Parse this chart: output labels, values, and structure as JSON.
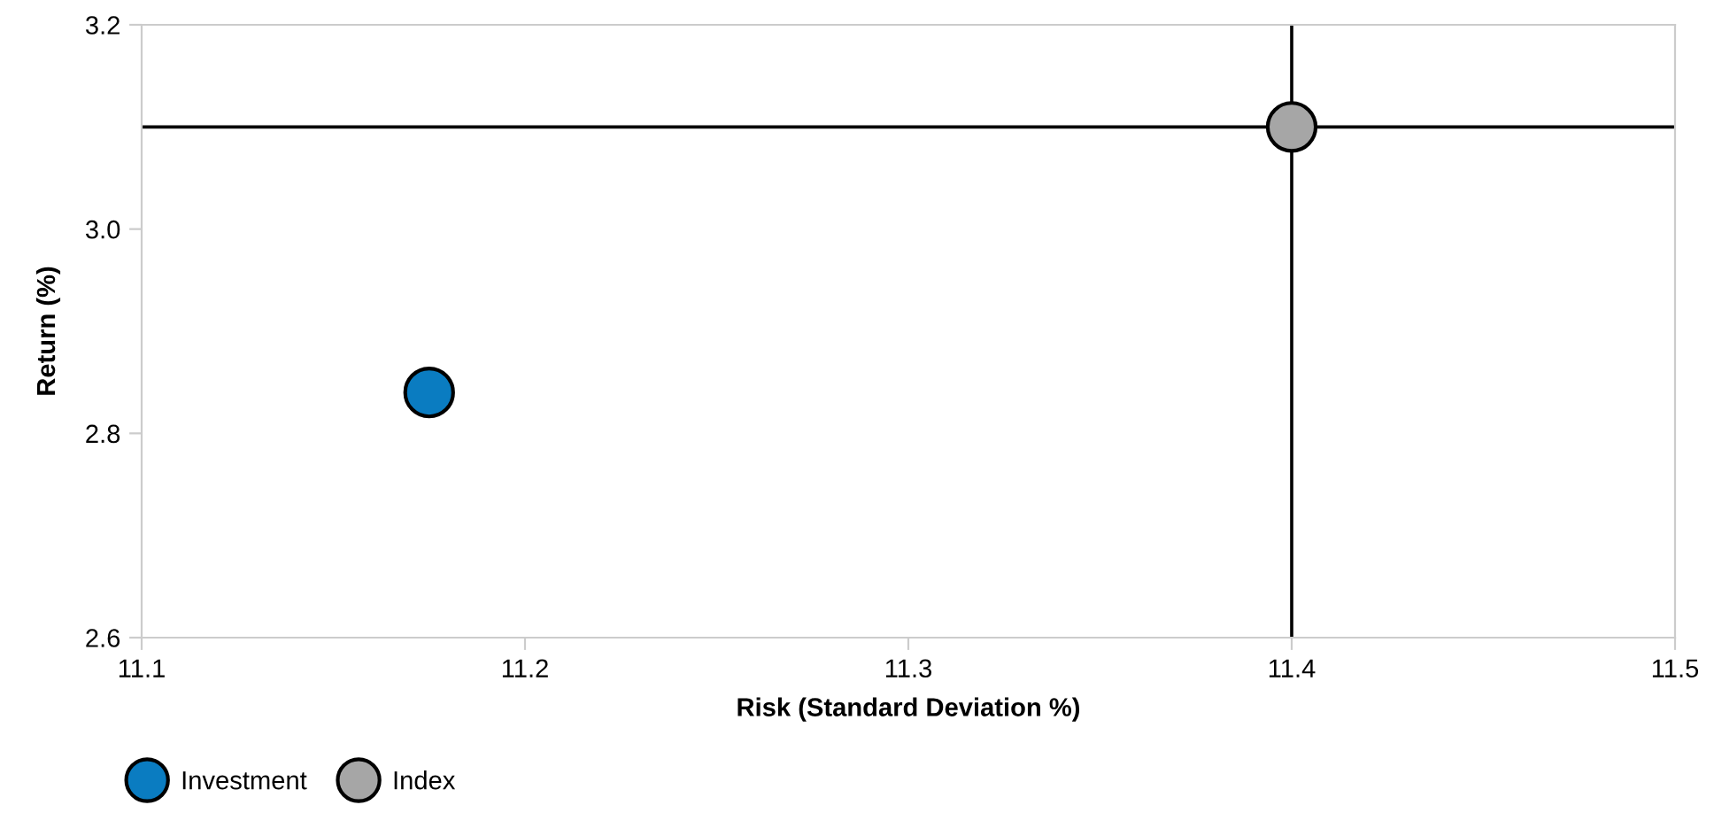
{
  "chart_data": {
    "type": "scatter",
    "xlabel": "Risk (Standard Deviation %)",
    "ylabel": "Return (%)",
    "series": [
      {
        "name": "Investment",
        "color": "#0a7cc1",
        "x": [
          11.175
        ],
        "values": [
          2.84
        ]
      },
      {
        "name": "Index",
        "color": "#a6a6a6",
        "x": [
          11.4
        ],
        "values": [
          3.1
        ]
      }
    ],
    "xlim": [
      11.1,
      11.5
    ],
    "xticks": [
      11.1,
      11.2,
      11.3,
      11.4,
      11.5
    ],
    "ylim": [
      2.6,
      3.2
    ],
    "yticks": [
      2.6,
      2.8,
      {
        "value": 3,
        "label": "3.0"
      },
      3.2
    ],
    "ref_lines": [
      {
        "axis": "x",
        "value": 11.4,
        "color": "#000000"
      },
      {
        "axis": "y",
        "value": 3.1,
        "color": "#000000"
      }
    ],
    "grid": false,
    "legend": "bottom left",
    "marker": "circle"
  }
}
